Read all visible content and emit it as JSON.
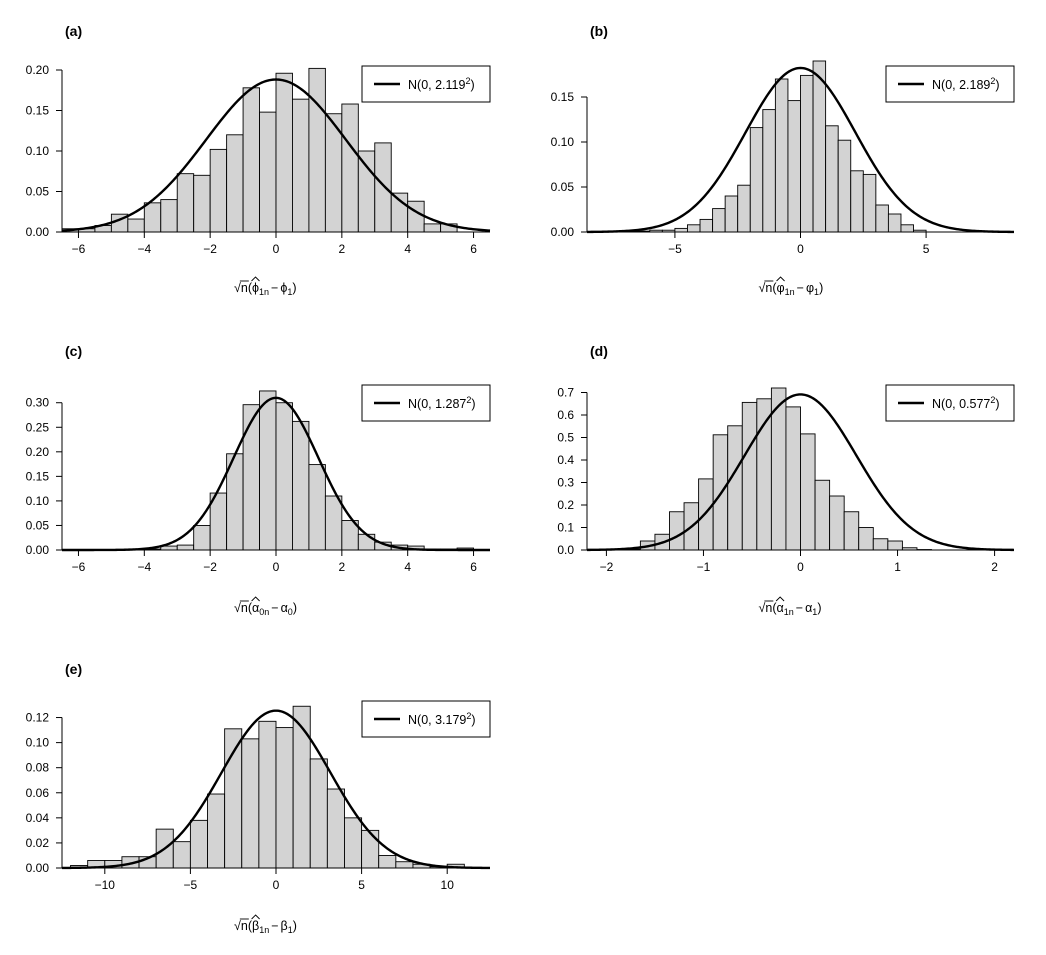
{
  "chart_data": [
    {
      "type": "bar",
      "panel": "(a)",
      "legend": {
        "label": "N(0, 2.119",
        "sup": "2",
        "close": ")"
      },
      "xlabel": {
        "sqrt": "n",
        "hat": "ϕ",
        "hat_sub": "1n",
        "minus": "−",
        "param": "ϕ",
        "param_sub": "1"
      },
      "xlim": [
        -6.5,
        6.5
      ],
      "ylim": [
        0,
        0.2
      ],
      "xticks": [
        -6,
        -4,
        -2,
        0,
        2,
        4,
        6
      ],
      "yticks": [
        0.0,
        0.05,
        0.1,
        0.15,
        0.2
      ],
      "ytick_labels": [
        "0.00",
        "0.05",
        "0.10",
        "0.15",
        "0.20"
      ],
      "bin_start": -6.5,
      "bin_width": 0.5,
      "values": [
        0.004,
        0.004,
        0.008,
        0.022,
        0.016,
        0.036,
        0.04,
        0.072,
        0.07,
        0.102,
        0.12,
        0.178,
        0.148,
        0.196,
        0.164,
        0.202,
        0.146,
        0.158,
        0.1,
        0.11,
        0.048,
        0.038,
        0.01,
        0.01
      ],
      "curve": {
        "mean": 0,
        "sd": 2.119
      }
    },
    {
      "type": "bar",
      "panel": "(b)",
      "legend": {
        "label": "N(0, 2.189",
        "sup": "2",
        "close": ")"
      },
      "xlabel": {
        "sqrt": "n",
        "hat": "φ",
        "hat_sub": "1n",
        "minus": "−",
        "param": "φ",
        "param_sub": "1"
      },
      "xlim": [
        -8.5,
        8.5
      ],
      "ylim": [
        0,
        0.18
      ],
      "xticks": [
        -5,
        0,
        5
      ],
      "yticks": [
        0.0,
        0.05,
        0.1,
        0.15
      ],
      "ytick_labels": [
        "0.00",
        "0.05",
        "0.10",
        "0.15"
      ],
      "bin_start": -7.0,
      "bin_width": 0.5,
      "values": [
        0.001,
        0.001,
        0.002,
        0.002,
        0.004,
        0.008,
        0.014,
        0.026,
        0.04,
        0.052,
        0.116,
        0.136,
        0.17,
        0.146,
        0.174,
        0.19,
        0.118,
        0.102,
        0.068,
        0.064,
        0.03,
        0.02,
        0.008,
        0.002
      ],
      "curve": {
        "mean": 0,
        "sd": 2.189
      }
    },
    {
      "type": "bar",
      "panel": "(c)",
      "legend": {
        "label": "N(0, 1.287",
        "sup": "2",
        "close": ")"
      },
      "xlabel": {
        "sqrt": "n",
        "hat": "α",
        "hat_sub": "0n",
        "minus": "−",
        "param": "α",
        "param_sub": "0"
      },
      "xlim": [
        -6.5,
        6.5
      ],
      "ylim": [
        0,
        0.33
      ],
      "xticks": [
        -6,
        -4,
        -2,
        0,
        2,
        4,
        6
      ],
      "yticks": [
        0.0,
        0.05,
        0.1,
        0.15,
        0.2,
        0.25,
        0.3
      ],
      "ytick_labels": [
        "0.00",
        "0.05",
        "0.10",
        "0.15",
        "0.20",
        "0.25",
        "0.30"
      ],
      "bin_start": -4.0,
      "bin_width": 0.5,
      "values": [
        0.002,
        0.008,
        0.01,
        0.05,
        0.116,
        0.196,
        0.296,
        0.324,
        0.3,
        0.262,
        0.174,
        0.11,
        0.06,
        0.032,
        0.016,
        0.01,
        0.008,
        0.002,
        0.002,
        0.004
      ],
      "curve": {
        "mean": 0,
        "sd": 1.287
      }
    },
    {
      "type": "bar",
      "panel": "(d)",
      "legend": {
        "label": "N(0, 0.577",
        "sup": "2",
        "close": ")"
      },
      "xlabel": {
        "sqrt": "n",
        "hat": "α",
        "hat_sub": "1n",
        "minus": "−",
        "param": "α",
        "param_sub": "1"
      },
      "xlim": [
        -2.2,
        2.2
      ],
      "ylim": [
        0,
        0.72
      ],
      "xticks": [
        -2,
        -1,
        0,
        1,
        2
      ],
      "yticks": [
        0.0,
        0.1,
        0.2,
        0.3,
        0.4,
        0.5,
        0.6,
        0.7
      ],
      "ytick_labels": [
        "0.0",
        "0.1",
        "0.2",
        "0.3",
        "0.4",
        "0.5",
        "0.6",
        "0.7"
      ],
      "bin_start": -1.8,
      "bin_width": 0.15,
      "values": [
        0.004,
        0.04,
        0.07,
        0.17,
        0.21,
        0.316,
        0.512,
        0.552,
        0.656,
        0.672,
        0.72,
        0.636,
        0.516,
        0.31,
        0.24,
        0.17,
        0.1,
        0.05,
        0.04,
        0.01,
        0.002
      ],
      "curve": {
        "mean": 0,
        "sd": 0.577
      }
    },
    {
      "type": "bar",
      "panel": "(e)",
      "legend": {
        "label": "N(0, 3.179",
        "sup": "2",
        "close": ")"
      },
      "xlabel": {
        "sqrt": "n",
        "hat": "β",
        "hat_sub": "1n",
        "minus": "−",
        "param": "β",
        "param_sub": "1"
      },
      "xlim": [
        -12.5,
        12.5
      ],
      "ylim": [
        0,
        0.13
      ],
      "xticks": [
        -10,
        -5,
        0,
        5,
        10
      ],
      "yticks": [
        0.0,
        0.02,
        0.04,
        0.06,
        0.08,
        0.1,
        0.12
      ],
      "ytick_labels": [
        "0.00",
        "0.02",
        "0.04",
        "0.06",
        "0.08",
        "0.10",
        "0.12"
      ],
      "bin_start": -12.0,
      "bin_width": 1.0,
      "values": [
        0.002,
        0.006,
        0.006,
        0.009,
        0.009,
        0.031,
        0.021,
        0.038,
        0.059,
        0.111,
        0.103,
        0.117,
        0.112,
        0.129,
        0.087,
        0.063,
        0.04,
        0.03,
        0.01,
        0.005,
        0.003,
        0.001,
        0.003
      ],
      "curve": {
        "mean": 0,
        "sd": 3.179
      }
    }
  ]
}
